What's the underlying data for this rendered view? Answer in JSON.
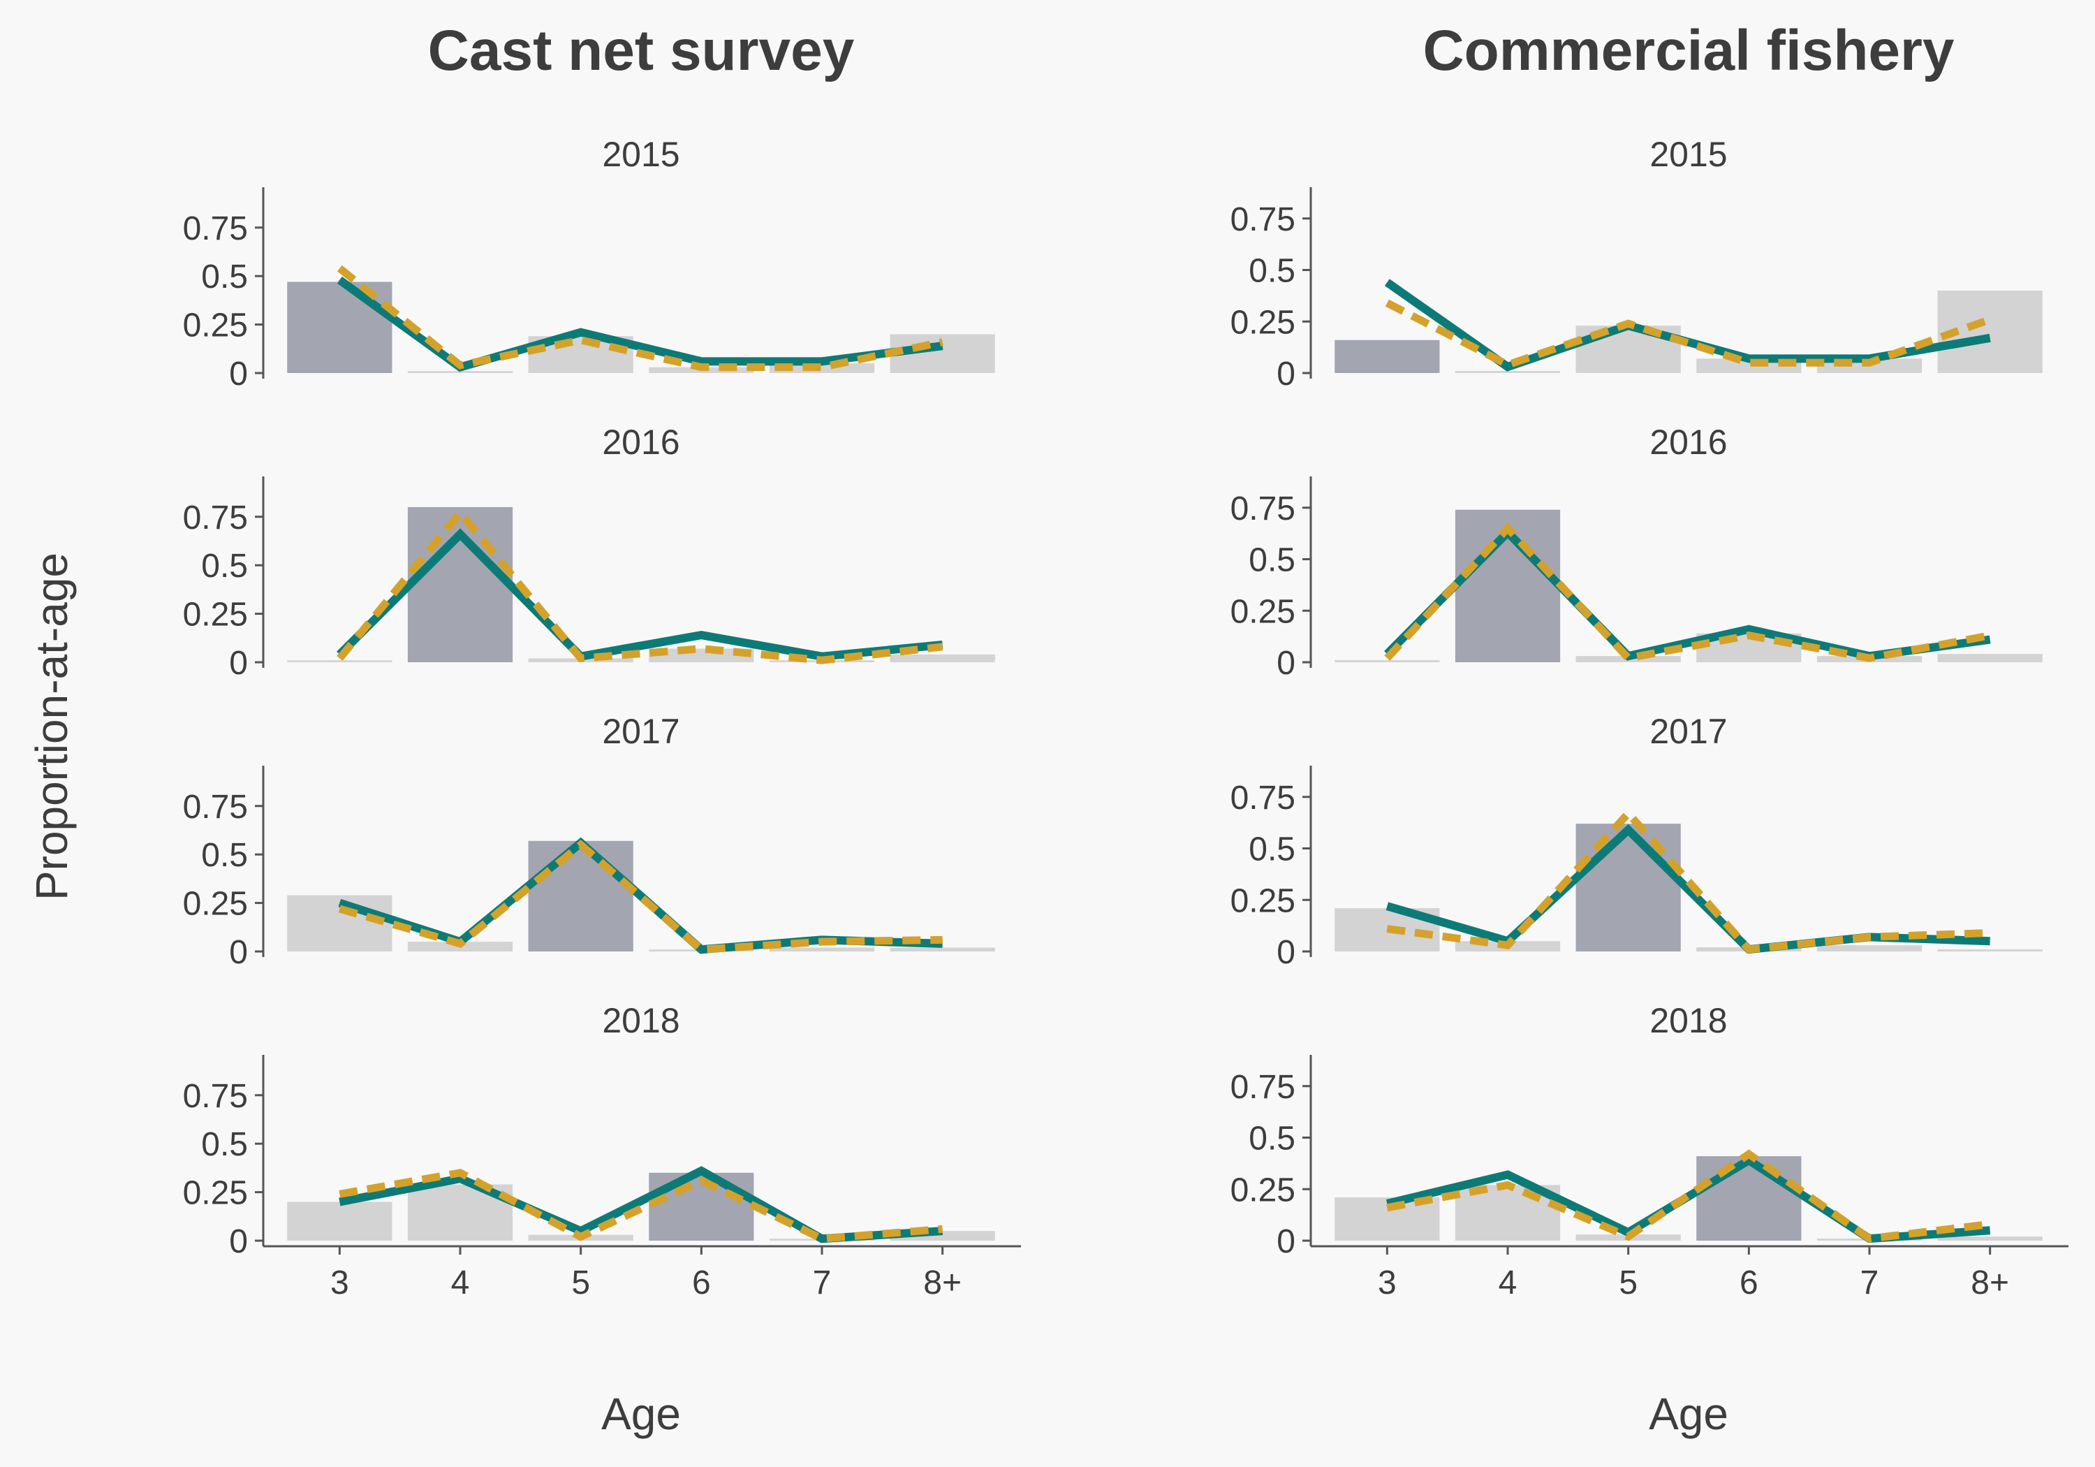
{
  "figure": {
    "ylabel": "Proportion-at-age",
    "xlabel": "Age"
  },
  "colors": {
    "background": "#f8f8f8",
    "bar_highlight": "#a3a5b1",
    "bar_default": "#d3d3d3",
    "line_solid": "#0c7b78",
    "line_dashed": "#d4a22a",
    "axis": "#555555",
    "text": "#3d3d3d"
  },
  "chart_data": [
    {
      "type": "bar",
      "column_title": "Cast net survey",
      "ages": [
        "3",
        "4",
        "5",
        "6",
        "7",
        "8+"
      ],
      "y_ticks": [
        "0",
        "0.25",
        "0.5",
        "0.75"
      ],
      "ylim": [
        0,
        0.85
      ],
      "panels": [
        {
          "year": "2015",
          "bars": [
            0.47,
            0.01,
            0.19,
            0.03,
            0.05,
            0.2
          ],
          "highlight": 0,
          "solid": [
            0.48,
            0.03,
            0.21,
            0.06,
            0.06,
            0.14
          ],
          "dashed": [
            0.54,
            0.04,
            0.17,
            0.03,
            0.03,
            0.16
          ]
        },
        {
          "year": "2016",
          "bars": [
            0.01,
            0.8,
            0.02,
            0.07,
            0.01,
            0.04
          ],
          "highlight": 1,
          "solid": [
            0.04,
            0.66,
            0.03,
            0.14,
            0.03,
            0.09
          ],
          "dashed": [
            0.02,
            0.77,
            0.02,
            0.07,
            0.01,
            0.08
          ]
        },
        {
          "year": "2017",
          "bars": [
            0.29,
            0.05,
            0.57,
            0.01,
            0.02,
            0.02
          ],
          "highlight": 2,
          "solid": [
            0.25,
            0.05,
            0.56,
            0.01,
            0.06,
            0.04
          ],
          "dashed": [
            0.22,
            0.04,
            0.55,
            0.01,
            0.05,
            0.06
          ]
        },
        {
          "year": "2018",
          "bars": [
            0.2,
            0.29,
            0.03,
            0.35,
            0.01,
            0.05
          ],
          "highlight": 3,
          "solid": [
            0.2,
            0.32,
            0.05,
            0.36,
            0.01,
            0.05
          ],
          "dashed": [
            0.24,
            0.35,
            0.02,
            0.31,
            0.01,
            0.06
          ]
        }
      ]
    },
    {
      "type": "bar",
      "column_title": "Commercial fishery",
      "ages": [
        "3",
        "4",
        "5",
        "6",
        "7",
        "8+"
      ],
      "y_ticks": [
        "0",
        "0.25",
        "0.5",
        "0.75"
      ],
      "ylim": [
        0,
        0.8
      ],
      "panels": [
        {
          "year": "2015",
          "bars": [
            0.16,
            0.01,
            0.23,
            0.07,
            0.07,
            0.4
          ],
          "highlight": 0,
          "solid": [
            0.44,
            0.03,
            0.23,
            0.07,
            0.07,
            0.17
          ],
          "dashed": [
            0.34,
            0.04,
            0.24,
            0.05,
            0.05,
            0.26
          ]
        },
        {
          "year": "2016",
          "bars": [
            0.01,
            0.74,
            0.03,
            0.14,
            0.03,
            0.04
          ],
          "highlight": 1,
          "solid": [
            0.04,
            0.63,
            0.03,
            0.16,
            0.03,
            0.11
          ],
          "dashed": [
            0.02,
            0.65,
            0.02,
            0.13,
            0.02,
            0.13
          ]
        },
        {
          "year": "2017",
          "bars": [
            0.21,
            0.05,
            0.62,
            0.02,
            0.03,
            0.01
          ],
          "highlight": 2,
          "solid": [
            0.22,
            0.05,
            0.59,
            0.01,
            0.07,
            0.05
          ],
          "dashed": [
            0.11,
            0.03,
            0.67,
            0.01,
            0.07,
            0.09
          ]
        },
        {
          "year": "2018",
          "bars": [
            0.21,
            0.27,
            0.03,
            0.41,
            0.01,
            0.02
          ],
          "highlight": 3,
          "solid": [
            0.18,
            0.32,
            0.04,
            0.39,
            0.01,
            0.05
          ],
          "dashed": [
            0.16,
            0.27,
            0.02,
            0.42,
            0.01,
            0.08
          ]
        }
      ]
    }
  ]
}
